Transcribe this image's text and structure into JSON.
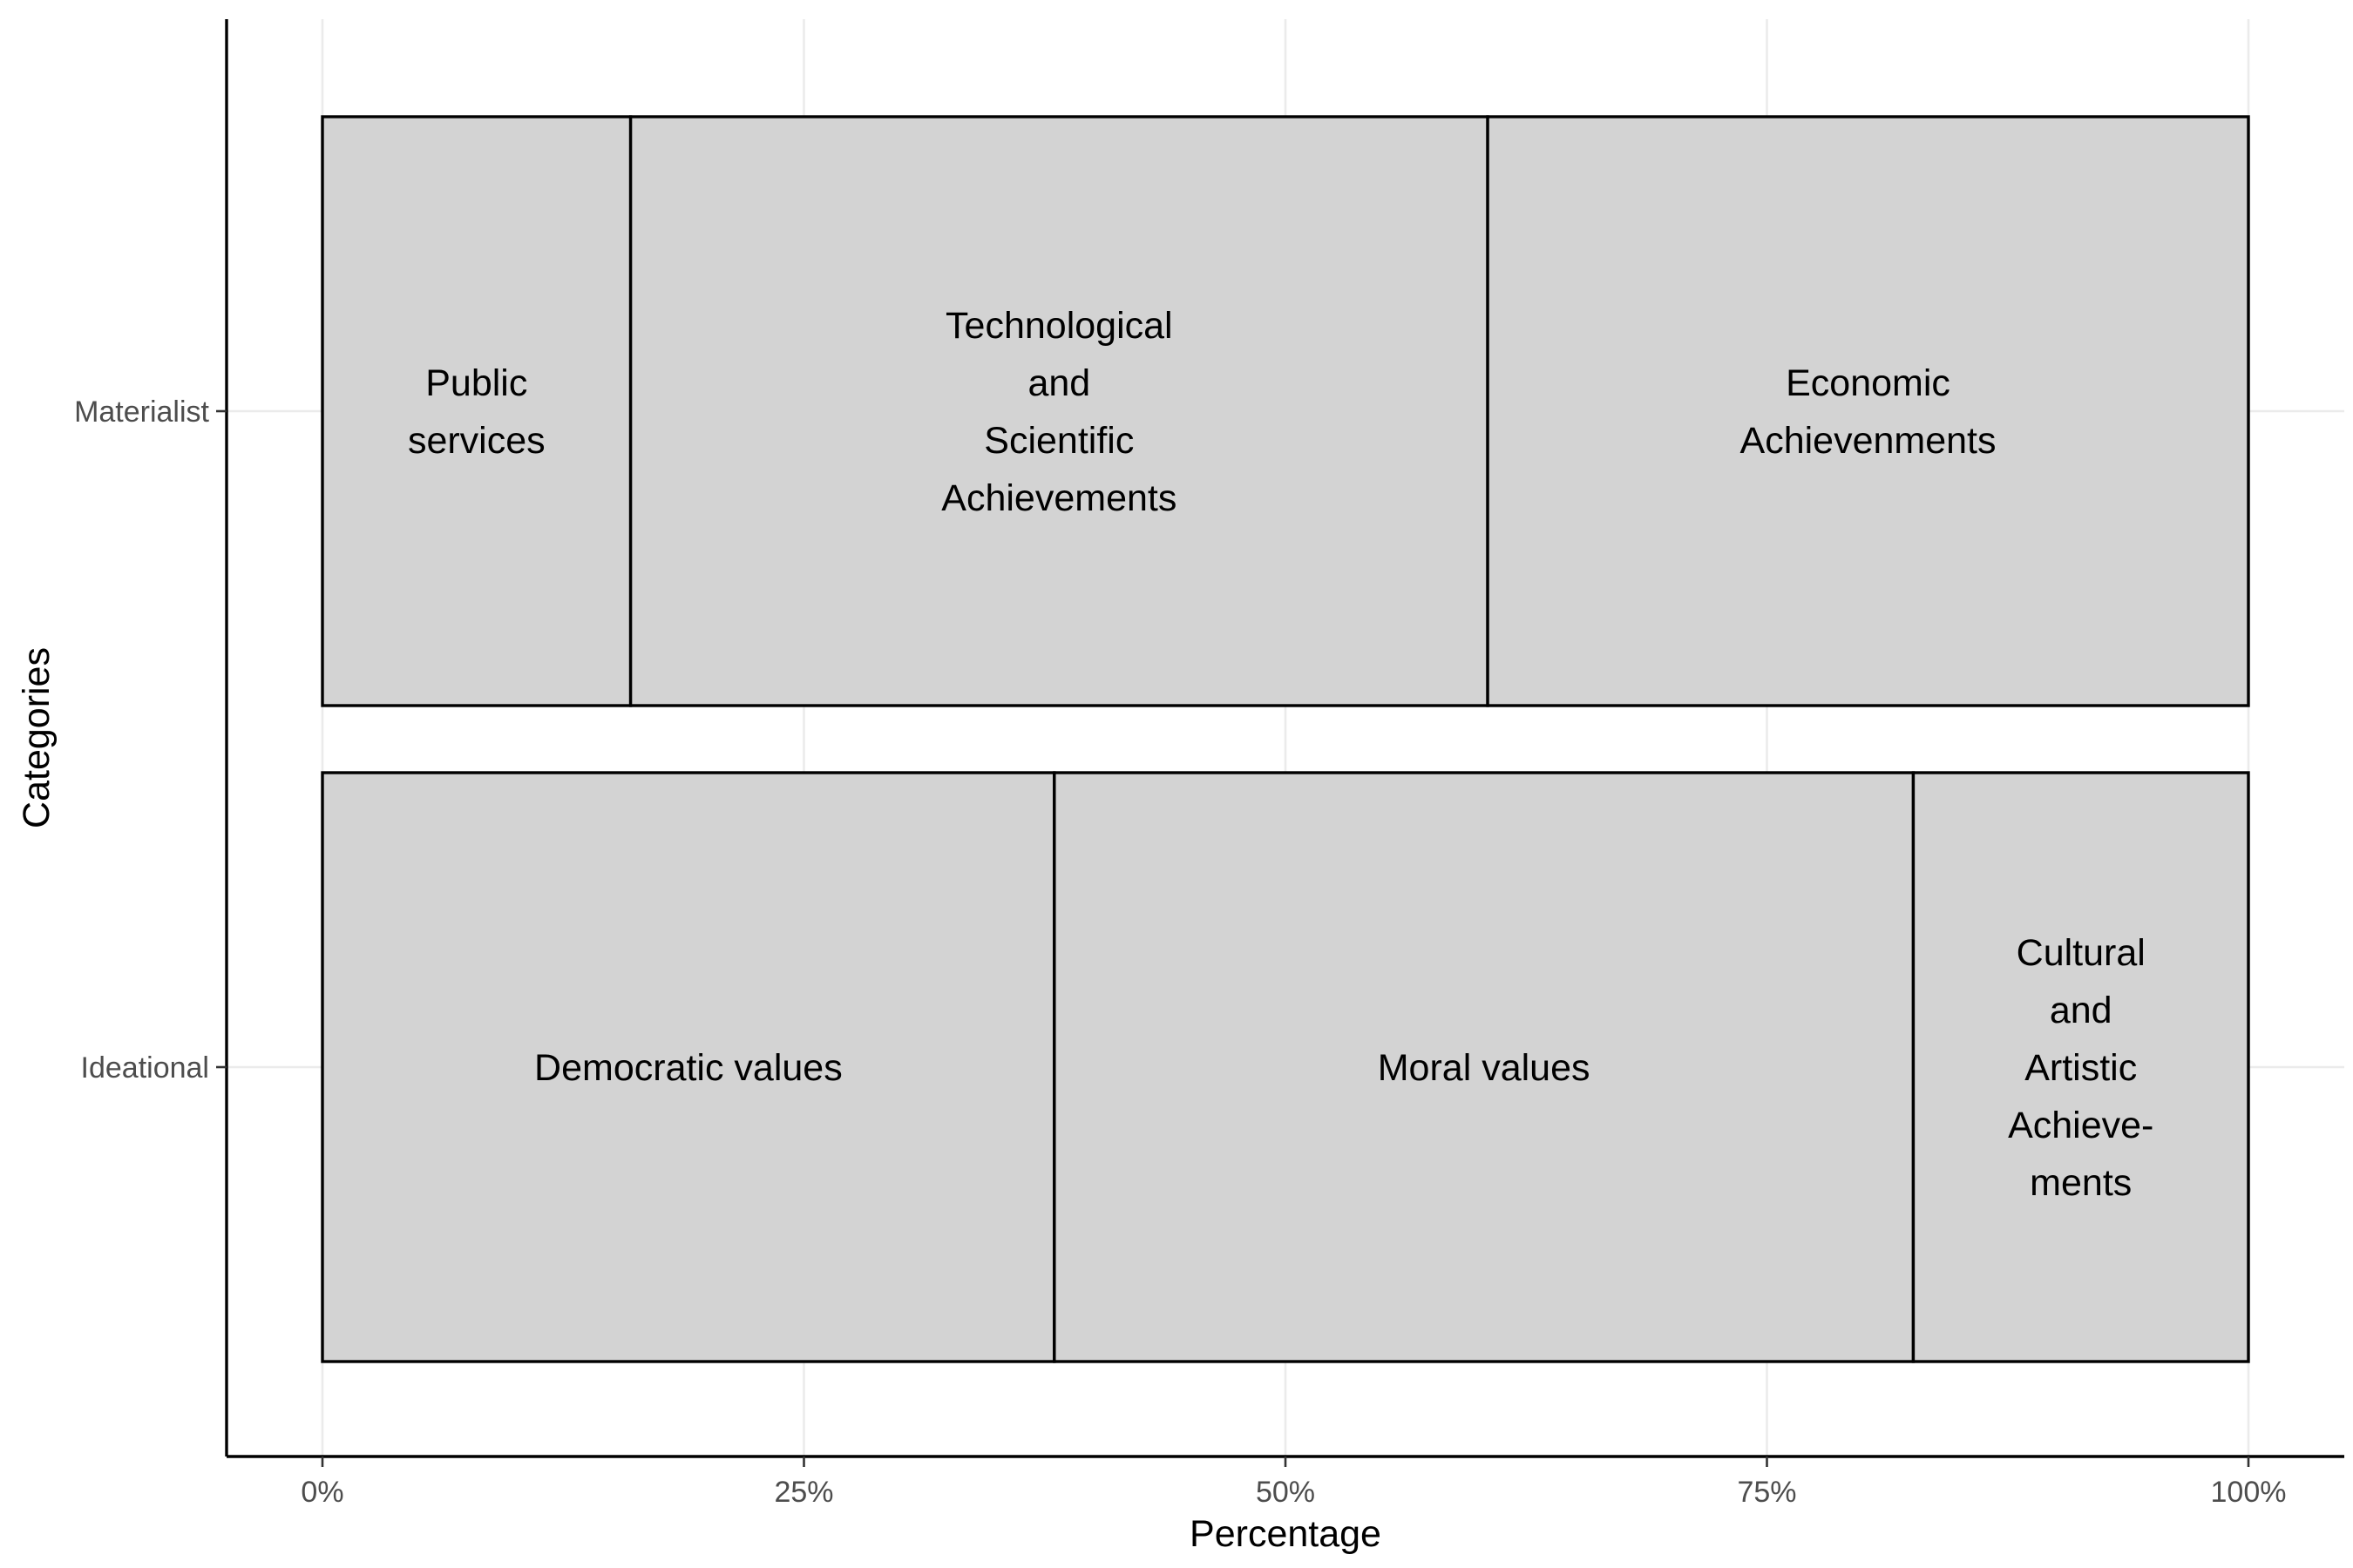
{
  "chart_data": {
    "type": "bar",
    "orientation": "horizontal",
    "stacked": "percent",
    "xlabel": "Percentage",
    "ylabel": "Categories",
    "xlim": [
      0,
      100
    ],
    "x_ticks": [
      {
        "value": 0,
        "label": "0%"
      },
      {
        "value": 25,
        "label": "25%"
      },
      {
        "value": 50,
        "label": "50%"
      },
      {
        "value": 75,
        "label": "75%"
      },
      {
        "value": 100,
        "label": "100%"
      }
    ],
    "grid": true,
    "bar_fill": "#d3d3d3",
    "bar_outline": "#000000",
    "categories": [
      "Materialist",
      "Ideational"
    ],
    "bars": [
      {
        "category": "Materialist",
        "segments": [
          {
            "label": [
              "Public",
              "services"
            ],
            "value": 16
          },
          {
            "label": [
              "Technological",
              "and",
              "Scientific",
              "Achievements"
            ],
            "value": 44.5
          },
          {
            "label": [
              "Economic",
              "Achievenments"
            ],
            "value": 39.5
          }
        ]
      },
      {
        "category": "Ideational",
        "segments": [
          {
            "label": [
              "Democratic values"
            ],
            "value": 38
          },
          {
            "label": [
              "Moral values"
            ],
            "value": 44.6
          },
          {
            "label": [
              "Cultural",
              "and",
              "Artistic",
              "Achieve-",
              "ments"
            ],
            "value": 17.4
          }
        ]
      }
    ]
  }
}
